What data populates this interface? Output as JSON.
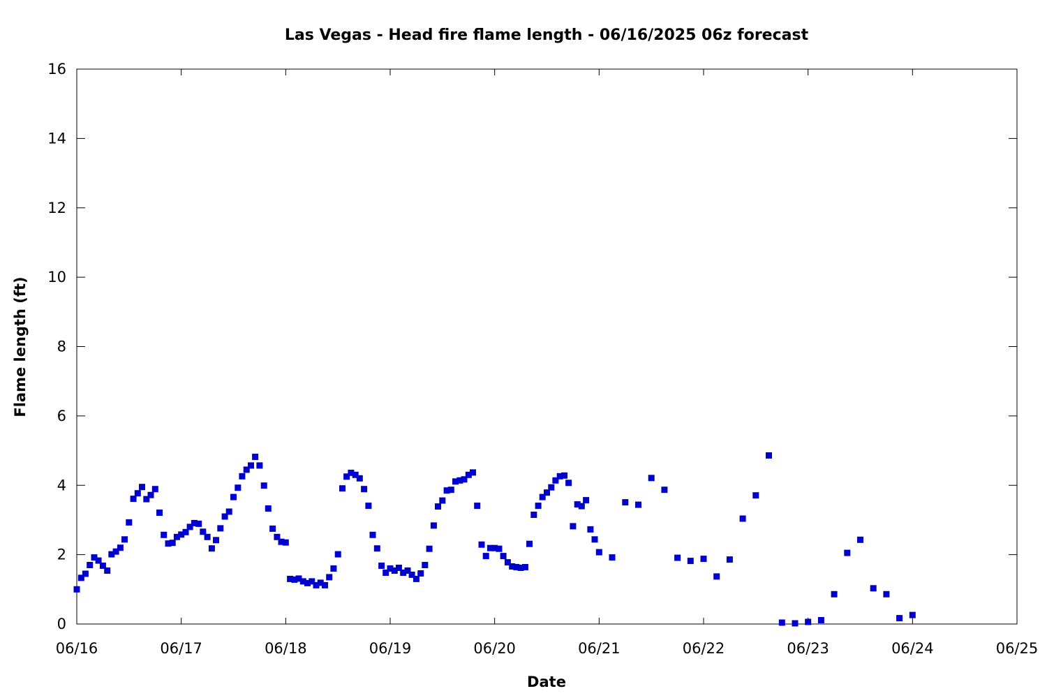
{
  "chart_data": {
    "type": "scatter",
    "title": "Las Vegas - Head fire flame length - 06/16/2025 06z forecast",
    "xlabel": "Date",
    "ylabel": "Flame length (ft)",
    "x_unit": "days",
    "xlim": [
      0,
      9
    ],
    "ylim": [
      0,
      16
    ],
    "x_ticks": [
      {
        "value": 0,
        "label": "06/16"
      },
      {
        "value": 1,
        "label": "06/17"
      },
      {
        "value": 2,
        "label": "06/18"
      },
      {
        "value": 3,
        "label": "06/19"
      },
      {
        "value": 4,
        "label": "06/20"
      },
      {
        "value": 5,
        "label": "06/21"
      },
      {
        "value": 6,
        "label": "06/22"
      },
      {
        "value": 7,
        "label": "06/23"
      },
      {
        "value": 8,
        "label": "06/24"
      },
      {
        "value": 9,
        "label": "06/25"
      }
    ],
    "y_ticks": [
      0,
      2,
      4,
      6,
      8,
      10,
      12,
      14,
      16
    ],
    "grid": false,
    "marker_color": "#0000cc",
    "series": [
      {
        "points": [
          [
            0.0,
            1.0
          ],
          [
            0.042,
            1.33
          ],
          [
            0.083,
            1.45
          ],
          [
            0.125,
            1.7
          ],
          [
            0.167,
            1.92
          ],
          [
            0.208,
            1.83
          ],
          [
            0.25,
            1.68
          ],
          [
            0.292,
            1.54
          ],
          [
            0.333,
            2.01
          ],
          [
            0.375,
            2.09
          ],
          [
            0.417,
            2.2
          ],
          [
            0.458,
            2.44
          ],
          [
            0.5,
            2.93
          ],
          [
            0.542,
            3.61
          ],
          [
            0.583,
            3.77
          ],
          [
            0.625,
            3.95
          ],
          [
            0.667,
            3.6
          ],
          [
            0.708,
            3.72
          ],
          [
            0.75,
            3.89
          ],
          [
            0.792,
            3.21
          ],
          [
            0.833,
            2.57
          ],
          [
            0.875,
            2.32
          ],
          [
            0.917,
            2.34
          ],
          [
            0.958,
            2.51
          ],
          [
            1.0,
            2.58
          ],
          [
            1.042,
            2.65
          ],
          [
            1.083,
            2.8
          ],
          [
            1.125,
            2.91
          ],
          [
            1.167,
            2.89
          ],
          [
            1.208,
            2.66
          ],
          [
            1.25,
            2.51
          ],
          [
            1.292,
            2.18
          ],
          [
            1.333,
            2.42
          ],
          [
            1.375,
            2.76
          ],
          [
            1.417,
            3.1
          ],
          [
            1.458,
            3.24
          ],
          [
            1.5,
            3.66
          ],
          [
            1.542,
            3.93
          ],
          [
            1.583,
            4.26
          ],
          [
            1.625,
            4.45
          ],
          [
            1.667,
            4.57
          ],
          [
            1.708,
            4.82
          ],
          [
            1.75,
            4.57
          ],
          [
            1.792,
            3.99
          ],
          [
            1.833,
            3.33
          ],
          [
            1.875,
            2.75
          ],
          [
            1.917,
            2.51
          ],
          [
            1.958,
            2.37
          ],
          [
            2.0,
            2.35
          ],
          [
            2.042,
            1.3
          ],
          [
            2.083,
            1.28
          ],
          [
            2.125,
            1.31
          ],
          [
            2.167,
            1.23
          ],
          [
            2.208,
            1.18
          ],
          [
            2.25,
            1.23
          ],
          [
            2.292,
            1.12
          ],
          [
            2.333,
            1.19
          ],
          [
            2.375,
            1.12
          ],
          [
            2.417,
            1.35
          ],
          [
            2.458,
            1.6
          ],
          [
            2.5,
            2.01
          ],
          [
            2.542,
            3.91
          ],
          [
            2.583,
            4.25
          ],
          [
            2.625,
            4.36
          ],
          [
            2.667,
            4.3
          ],
          [
            2.708,
            4.2
          ],
          [
            2.75,
            3.89
          ],
          [
            2.792,
            3.41
          ],
          [
            2.833,
            2.57
          ],
          [
            2.875,
            2.18
          ],
          [
            2.917,
            1.68
          ],
          [
            2.958,
            1.48
          ],
          [
            3.0,
            1.6
          ],
          [
            3.042,
            1.54
          ],
          [
            3.083,
            1.62
          ],
          [
            3.125,
            1.48
          ],
          [
            3.167,
            1.54
          ],
          [
            3.208,
            1.42
          ],
          [
            3.25,
            1.3
          ],
          [
            3.292,
            1.46
          ],
          [
            3.333,
            1.7
          ],
          [
            3.375,
            2.17
          ],
          [
            3.417,
            2.84
          ],
          [
            3.458,
            3.39
          ],
          [
            3.5,
            3.56
          ],
          [
            3.542,
            3.85
          ],
          [
            3.583,
            3.87
          ],
          [
            3.625,
            4.11
          ],
          [
            3.667,
            4.14
          ],
          [
            3.708,
            4.17
          ],
          [
            3.75,
            4.3
          ],
          [
            3.792,
            4.37
          ],
          [
            3.833,
            3.41
          ],
          [
            3.875,
            2.29
          ],
          [
            3.917,
            1.96
          ],
          [
            3.958,
            2.19
          ],
          [
            4.0,
            2.19
          ],
          [
            4.042,
            2.17
          ],
          [
            4.083,
            1.96
          ],
          [
            4.125,
            1.78
          ],
          [
            4.167,
            1.66
          ],
          [
            4.208,
            1.64
          ],
          [
            4.25,
            1.62
          ],
          [
            4.292,
            1.64
          ],
          [
            4.333,
            2.31
          ],
          [
            4.375,
            3.15
          ],
          [
            4.417,
            3.41
          ],
          [
            4.458,
            3.66
          ],
          [
            4.5,
            3.79
          ],
          [
            4.542,
            3.94
          ],
          [
            4.583,
            4.14
          ],
          [
            4.625,
            4.26
          ],
          [
            4.667,
            4.28
          ],
          [
            4.708,
            4.07
          ],
          [
            4.75,
            2.82
          ],
          [
            4.792,
            3.45
          ],
          [
            4.833,
            3.4
          ],
          [
            4.875,
            3.57
          ],
          [
            4.917,
            2.73
          ],
          [
            4.958,
            2.44
          ],
          [
            5.0,
            2.07
          ],
          [
            5.125,
            1.92
          ],
          [
            5.25,
            3.51
          ],
          [
            5.375,
            3.44
          ],
          [
            5.5,
            4.21
          ],
          [
            5.625,
            3.87
          ],
          [
            5.75,
            1.91
          ],
          [
            5.875,
            1.82
          ],
          [
            6.0,
            1.88
          ],
          [
            6.125,
            1.37
          ],
          [
            6.25,
            1.86
          ],
          [
            6.375,
            3.04
          ],
          [
            6.5,
            3.71
          ],
          [
            6.625,
            4.86
          ],
          [
            6.75,
            0.04
          ],
          [
            6.875,
            0.02
          ],
          [
            7.0,
            0.06
          ],
          [
            7.125,
            0.11
          ],
          [
            7.25,
            0.86
          ],
          [
            7.375,
            2.05
          ],
          [
            7.5,
            2.43
          ],
          [
            7.625,
            1.03
          ],
          [
            7.75,
            0.86
          ],
          [
            7.875,
            0.17
          ],
          [
            8.0,
            0.26
          ]
        ]
      }
    ]
  }
}
